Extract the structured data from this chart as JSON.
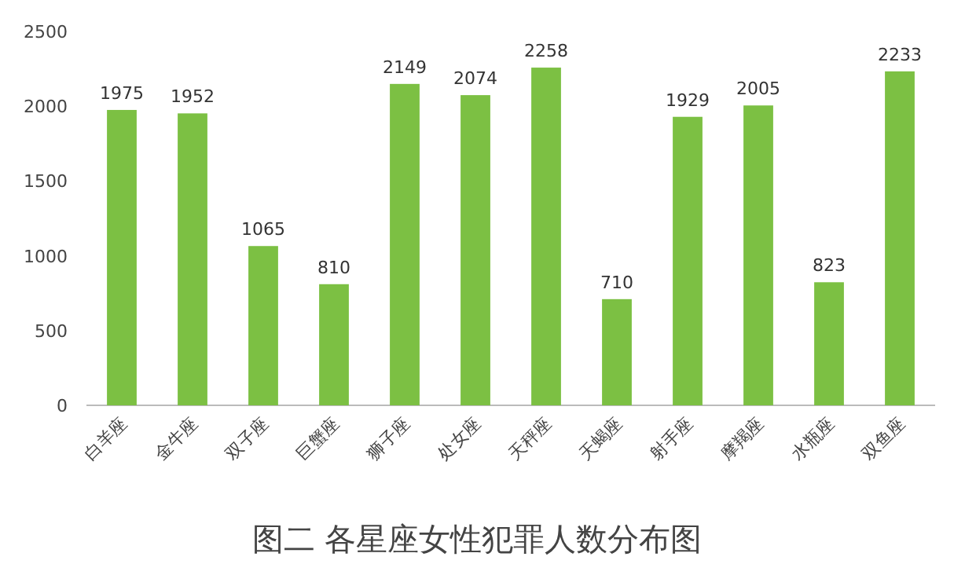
{
  "chart_data": {
    "type": "bar",
    "title": "图二 各星座女性犯罪人数分布图",
    "categories": [
      "白羊座",
      "金牛座",
      "双子座",
      "巨蟹座",
      "狮子座",
      "处女座",
      "天秤座",
      "天蝎座",
      "射手座",
      "摩羯座",
      "水瓶座",
      "双鱼座"
    ],
    "values": [
      1975,
      1952,
      1065,
      810,
      2149,
      2074,
      2258,
      710,
      1929,
      2005,
      823,
      2233
    ],
    "color": "#7cc043",
    "ylim": [
      0,
      2500
    ],
    "yticks": [
      0,
      500,
      1000,
      1500,
      2000,
      2500
    ],
    "data_labels": true
  }
}
